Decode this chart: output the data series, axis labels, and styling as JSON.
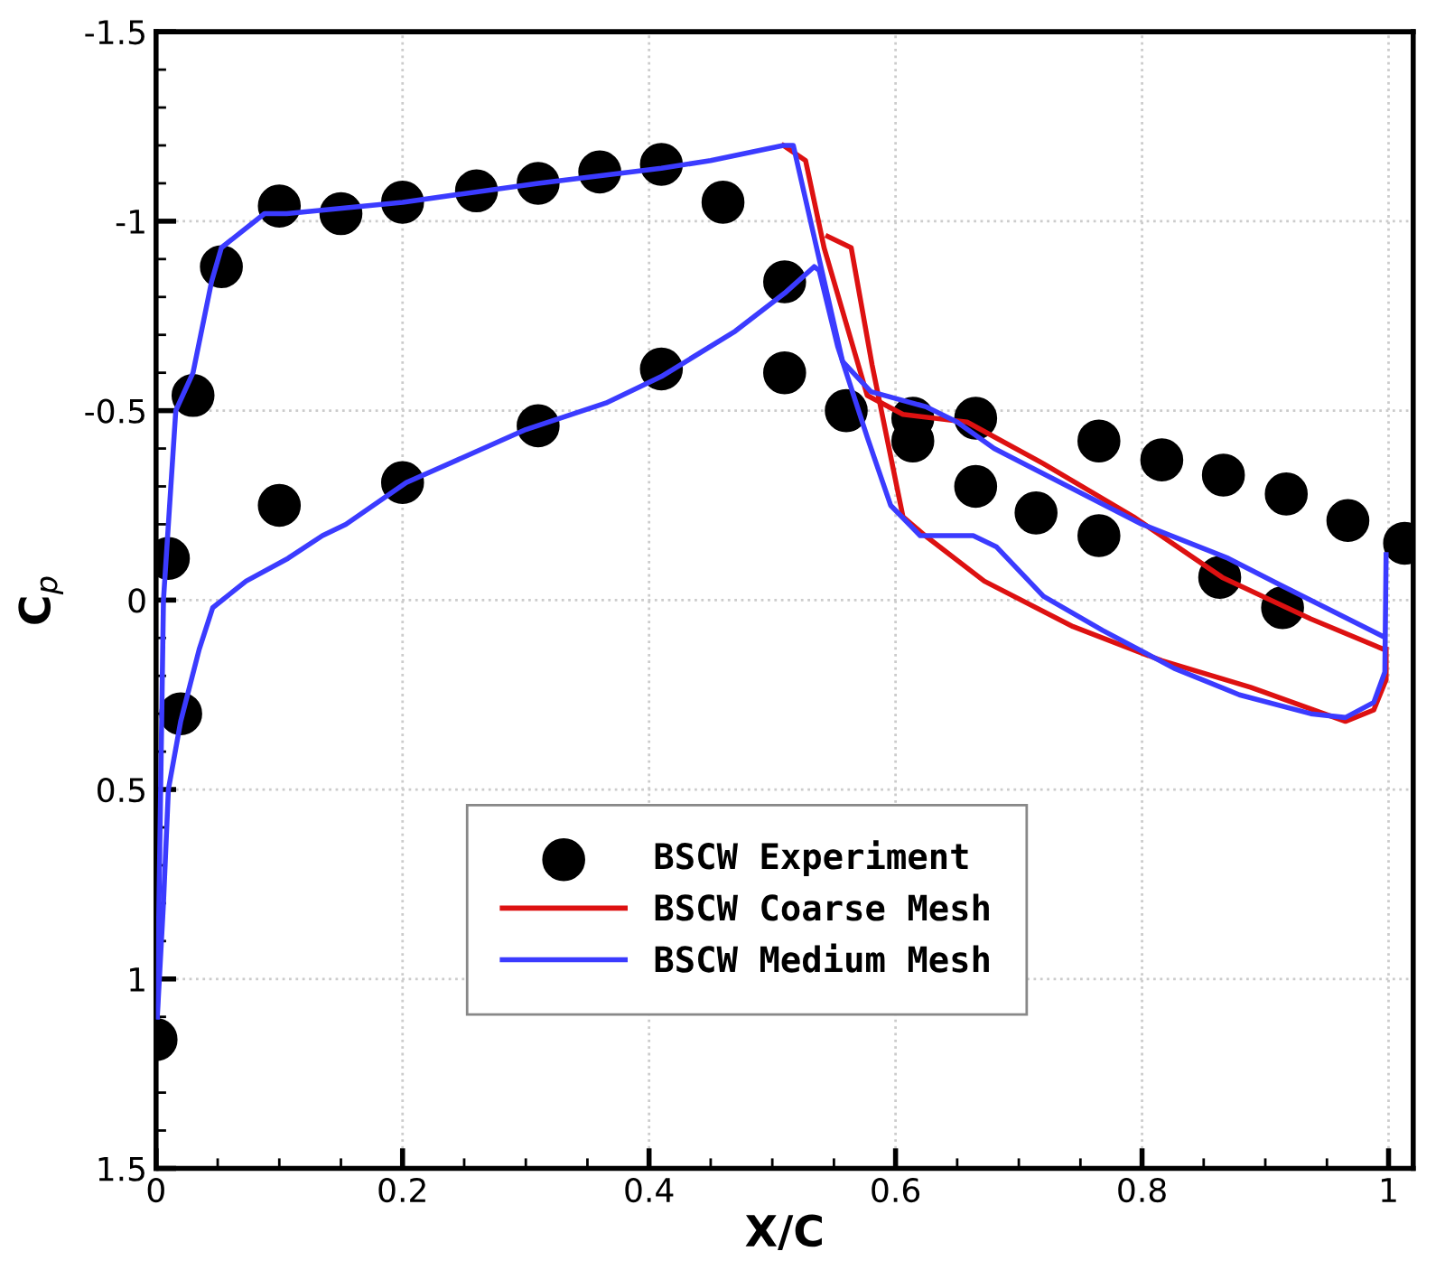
{
  "chart_data": {
    "type": "line",
    "xlabel": "X/C",
    "ylabel": "C$_{p}$",
    "xlim": [
      0,
      1.02
    ],
    "ylim": [
      1.5,
      -1.5
    ],
    "xticks": [
      0,
      0.2,
      0.4,
      0.6,
      0.8,
      1
    ],
    "yticks": [
      -1.5,
      -1,
      -0.5,
      0,
      0.5,
      1,
      1.5
    ],
    "grid": true,
    "legend": "bottom",
    "series": [
      {
        "name": "BSCW Experiment",
        "type": "scatter",
        "marker": "circle",
        "color": "#000000",
        "x": [
          0,
          0.01,
          0.02,
          0.03,
          0.053,
          0.1,
          0.1,
          0.15,
          0.2,
          0.2,
          0.26,
          0.31,
          0.31,
          0.36,
          0.41,
          0.41,
          0.46,
          0.51,
          0.51,
          0.56,
          0.614,
          0.614,
          0.665,
          0.665,
          0.714,
          0.765,
          0.765,
          0.816,
          0.866,
          0.863,
          0.917,
          0.914,
          0.967,
          1.013
        ],
        "values": [
          1.16,
          -0.11,
          0.3,
          -0.54,
          -0.88,
          -1.04,
          -0.25,
          -1.02,
          -1.05,
          -0.31,
          -1.08,
          -1.1,
          -0.46,
          -1.13,
          -1.15,
          -0.61,
          -1.05,
          -0.84,
          -0.6,
          -0.5,
          -0.48,
          -0.42,
          -0.48,
          -0.3,
          -0.23,
          -0.42,
          -0.17,
          -0.37,
          -0.33,
          -0.06,
          -0.28,
          0.02,
          -0.21,
          -0.15
        ]
      },
      {
        "name": "BSCW Coarse Mesh",
        "color": "#dd1111",
        "x": [
          0.509,
          0.527,
          0.542,
          0.577,
          0.606,
          0.658,
          0.72,
          0.793,
          0.865,
          0.937,
          0.996
        ],
        "values": [
          -1.2,
          -1.16,
          -0.93,
          -0.54,
          -0.49,
          -0.47,
          -0.36,
          -0.22,
          -0.06,
          0.05,
          0.13
        ]
      },
      {
        "color": "#dd1111",
        "x": [
          0.545,
          0.564,
          0.581,
          0.606,
          0.624,
          0.672,
          0.744,
          0.816,
          0.888,
          0.965,
          0.988,
          0.998,
          0.998
        ],
        "values": [
          -0.96,
          -0.93,
          -0.62,
          -0.22,
          -0.17,
          -0.05,
          0.07,
          0.16,
          0.23,
          0.32,
          0.29,
          0.21,
          0.13
        ]
      },
      {
        "name": "BSCW Medium Mesh",
        "color": "#3b3bff",
        "x": [
          0.001,
          0.006,
          0.016,
          0.03,
          0.045,
          0.053,
          0.088,
          0.106,
          0.2,
          0.31,
          0.41,
          0.45,
          0.509,
          0.517,
          0.557,
          0.58,
          0.625,
          0.65,
          0.68,
          0.74,
          0.8,
          0.87,
          0.912,
          0.995
        ],
        "values": [
          1.1,
          0.0,
          -0.5,
          -0.6,
          -0.84,
          -0.93,
          -1.02,
          -1.02,
          -1.05,
          -1.1,
          -1.14,
          -1.16,
          -1.2,
          -1.2,
          -0.63,
          -0.55,
          -0.51,
          -0.47,
          -0.4,
          -0.3,
          -0.2,
          -0.11,
          -0.04,
          0.095
        ]
      },
      {
        "color": "#3b3bff",
        "x": [
          0.001,
          0.006,
          0.01,
          0.02,
          0.035,
          0.046,
          0.073,
          0.107,
          0.135,
          0.154,
          0.203,
          0.3,
          0.365,
          0.41,
          0.47,
          0.51,
          0.534,
          0.538,
          0.553,
          0.577,
          0.596,
          0.62,
          0.663,
          0.682,
          0.72,
          0.768,
          0.826,
          0.879,
          0.937,
          0.965,
          0.988,
          0.997,
          0.998
        ],
        "values": [
          1.1,
          0.8,
          0.5,
          0.32,
          0.13,
          0.02,
          -0.05,
          -0.11,
          -0.17,
          -0.2,
          -0.31,
          -0.45,
          -0.52,
          -0.59,
          -0.71,
          -0.81,
          -0.88,
          -0.87,
          -0.67,
          -0.43,
          -0.25,
          -0.17,
          -0.17,
          -0.14,
          -0.01,
          0.08,
          0.18,
          0.25,
          0.3,
          0.31,
          0.27,
          0.19,
          -0.12
        ]
      }
    ]
  }
}
